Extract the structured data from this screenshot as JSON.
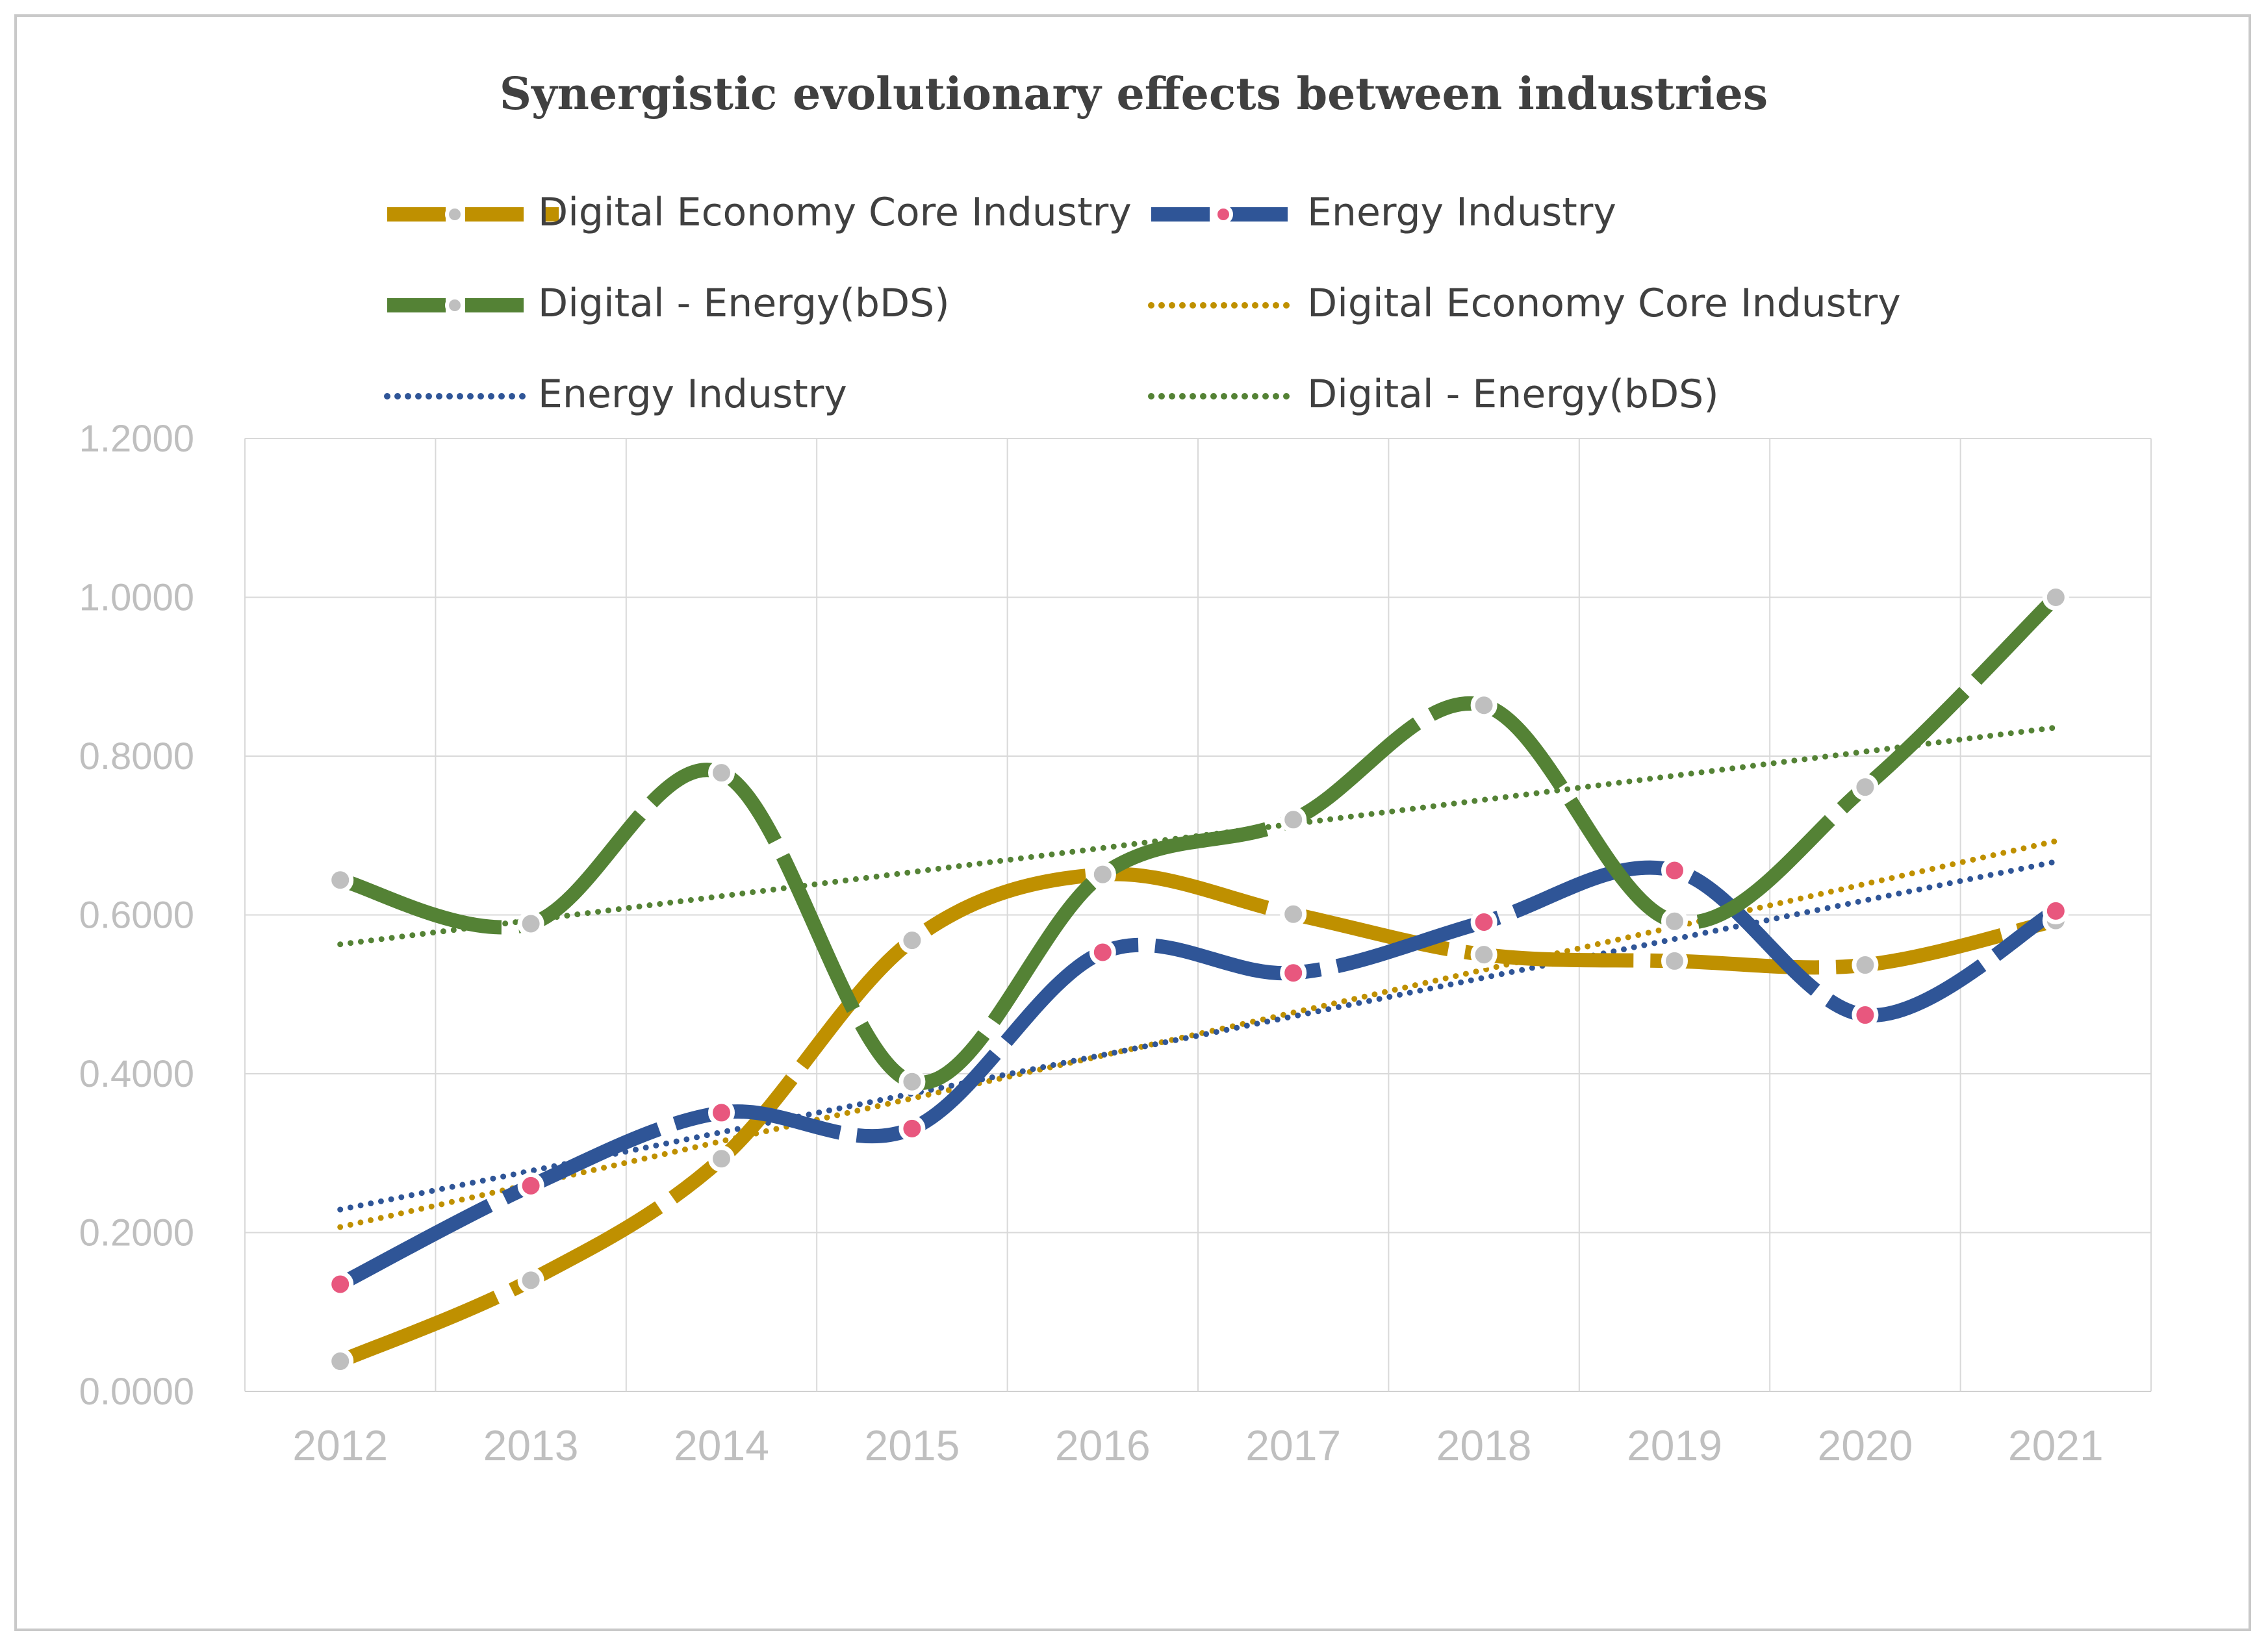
{
  "chart_data": {
    "type": "line",
    "title": "Synergistic evolutionary effects between industries",
    "categories": [
      "2012",
      "2013",
      "2014",
      "2015",
      "2016",
      "2017",
      "2018",
      "2019",
      "2020",
      "2021"
    ],
    "y_ticks": [
      "0.0000",
      "0.2000",
      "0.4000",
      "0.6000",
      "0.8000",
      "1.0000",
      "1.2000"
    ],
    "ylim": [
      0,
      1.2
    ],
    "grid": true,
    "legend_position": "top",
    "series": [
      {
        "name": "Digital Economy Core Industry",
        "kind": "data",
        "color": "#bf9000",
        "marker_color": "#bfbfbf",
        "values": [
          0.038,
          0.14,
          0.293,
          0.568,
          0.651,
          0.601,
          0.55,
          0.542,
          0.537,
          0.593
        ]
      },
      {
        "name": "Energy Industry",
        "kind": "data",
        "color": "#2f5597",
        "marker_color": "#e8577e",
        "values": [
          0.135,
          0.259,
          0.351,
          0.331,
          0.553,
          0.527,
          0.591,
          0.656,
          0.474,
          0.605
        ]
      },
      {
        "name": "Digital - Energy(bDS)",
        "kind": "data",
        "color": "#548235",
        "marker_color": "#bfbfbf",
        "values": [
          0.644,
          0.589,
          0.779,
          0.39,
          0.651,
          0.72,
          0.864,
          0.592,
          0.761,
          1.0
        ]
      },
      {
        "name": "Digital Economy Core Industry",
        "kind": "trend",
        "color": "#bf9000",
        "start": 0.207,
        "end": 0.693
      },
      {
        "name": "Energy Industry",
        "kind": "trend",
        "color": "#2f5597",
        "start": 0.229,
        "end": 0.667
      },
      {
        "name": "Digital - Energy(bDS)",
        "kind": "trend",
        "color": "#548235",
        "start": 0.563,
        "end": 0.836
      }
    ]
  }
}
